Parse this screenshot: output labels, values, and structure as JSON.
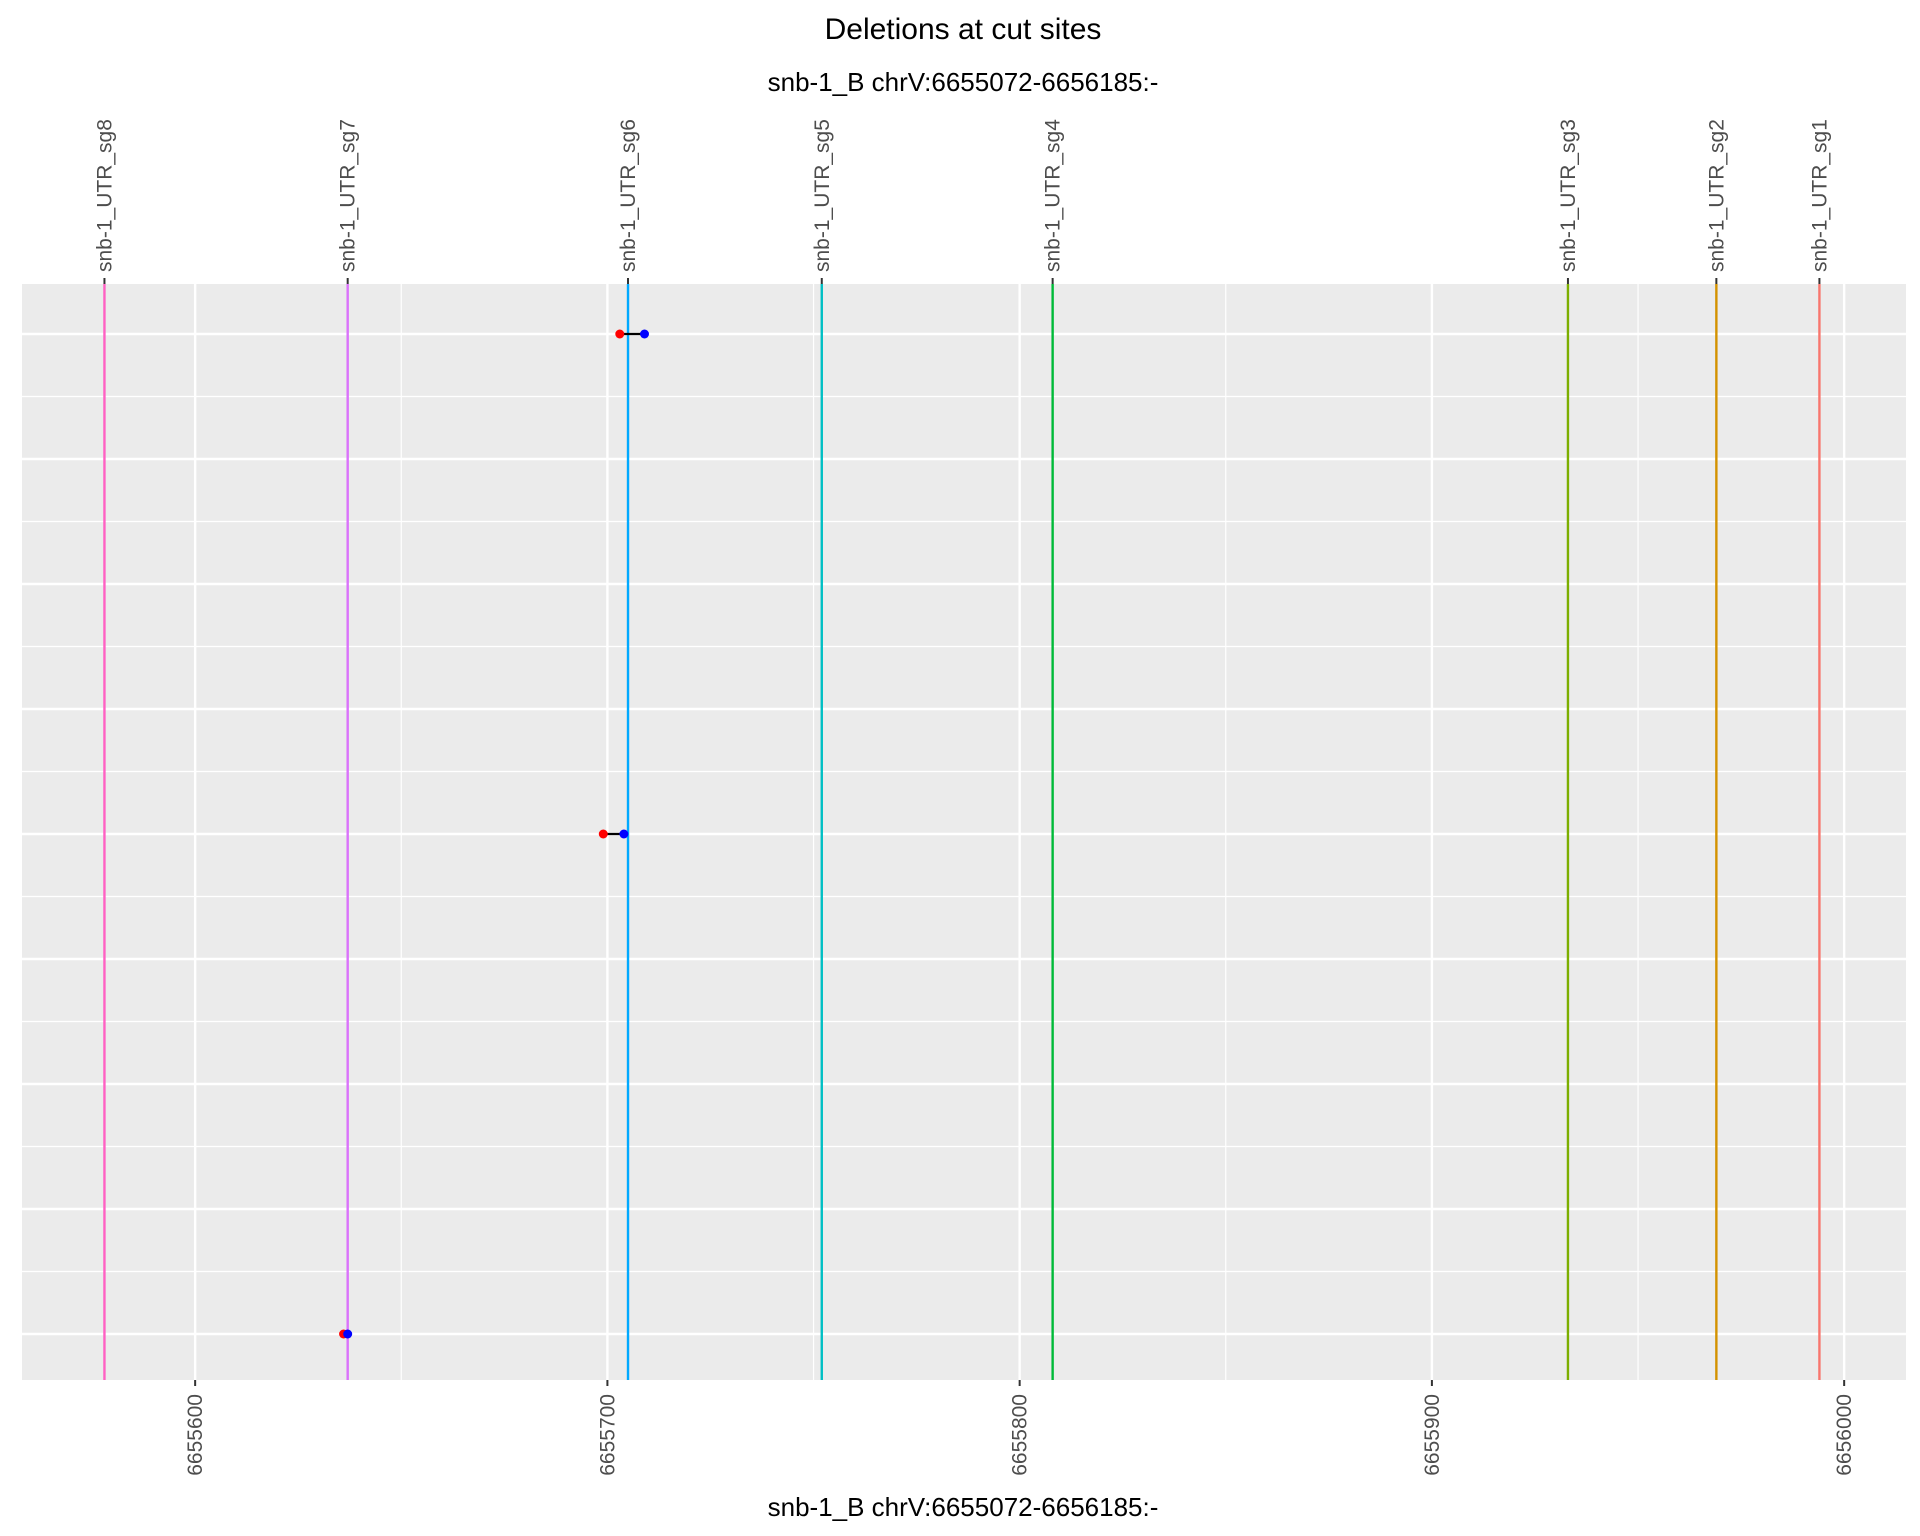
{
  "chart_data": {
    "type": "scatter",
    "title": "Deletions at cut sites",
    "subtitle": "snb-1_B chrV:6655072-6656185:-",
    "xlabel": "snb-1_B chrV:6655072-6656185:-",
    "ylabel": "",
    "xlim": [
      6655558,
      6656015
    ],
    "x_ticks": [
      6655600,
      6655700,
      6655800,
      6655900,
      6656000
    ],
    "x_tick_labels": [
      "6655600",
      "6655700",
      "6655800",
      "6655900",
      "6656000"
    ],
    "rows": 9,
    "grid": true,
    "cut_sites": [
      {
        "name": "snb-1_UTR_sg8",
        "x": 6655578,
        "color": "#FF61C3"
      },
      {
        "name": "snb-1_UTR_sg7",
        "x": 6655637,
        "color": "#DB72FB"
      },
      {
        "name": "snb-1_UTR_sg6",
        "x": 6655705,
        "color": "#00A9FF"
      },
      {
        "name": "snb-1_UTR_sg5",
        "x": 6655752,
        "color": "#00BFC4"
      },
      {
        "name": "snb-1_UTR_sg4",
        "x": 6655808,
        "color": "#00BA38"
      },
      {
        "name": "snb-1_UTR_sg3",
        "x": 6655933,
        "color": "#7CAE00"
      },
      {
        "name": "snb-1_UTR_sg2",
        "x": 6655969,
        "color": "#D39200"
      },
      {
        "name": "snb-1_UTR_sg1",
        "x": 6655994,
        "color": "#F8766D"
      }
    ],
    "deletions": [
      {
        "row": 1,
        "start": 6655703,
        "end": 6655709
      },
      {
        "row": 5,
        "start": 6655699,
        "end": 6655704
      },
      {
        "row": 9,
        "start": 6655636,
        "end": 6655637
      }
    ],
    "start_color": "#FF0000",
    "end_color": "#0000FF"
  }
}
